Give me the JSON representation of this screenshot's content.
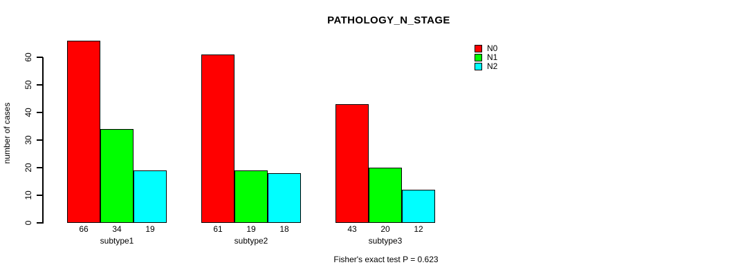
{
  "chart_data": {
    "type": "bar",
    "title": "PATHOLOGY_N_STAGE",
    "xlabel": "",
    "ylabel": "number of cases",
    "ylim": [
      0,
      60
    ],
    "yticks": [
      0,
      10,
      20,
      30,
      40,
      50,
      60
    ],
    "grid": false,
    "categories": [
      "subtype1",
      "subtype2",
      "subtype3"
    ],
    "series": [
      {
        "name": "N0",
        "color": "#ff0000",
        "values": [
          66,
          61,
          43
        ]
      },
      {
        "name": "N1",
        "color": "#00ff00",
        "values": [
          34,
          19,
          20
        ]
      },
      {
        "name": "N2",
        "color": "#00ffff",
        "values": [
          19,
          18,
          12
        ]
      }
    ],
    "bar_value_labels_shown": true,
    "legend_position": "top-right",
    "legend_entries": [
      "N0",
      "N1",
      "N2"
    ],
    "annotation": "Fisher's exact test P = 0.623"
  }
}
